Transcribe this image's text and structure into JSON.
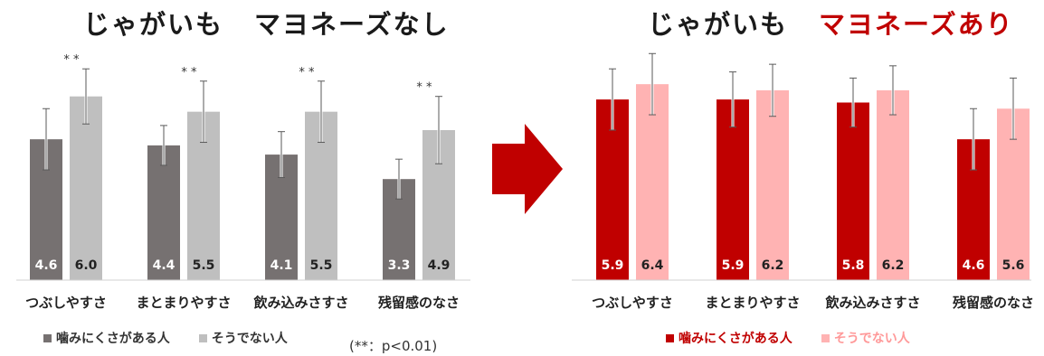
{
  "titles": {
    "left_part1": "じゃがいも",
    "left_part2": "マヨネーズなし",
    "right_part1": "じゃがいも",
    "right_part2": "マヨネーズあり"
  },
  "legend": {
    "series1": "噛みにくさがある人",
    "series2": "そうでない人"
  },
  "note": "(**：p<0.01)",
  "colors": {
    "left_series1": "#767171",
    "left_series2": "#bfbfbf",
    "right_series1": "#c00000",
    "right_series2": "#ffb3b3",
    "arrow": "#c00000",
    "right_legend_text": "#c00000",
    "right_legend_text2": "#ff9999"
  },
  "chart_data": [
    {
      "type": "bar",
      "title": "じゃがいも マヨネーズなし",
      "categories": [
        "つぶしやすさ",
        "まとまりやすさ",
        "飲み込みさすさ",
        "残留感のなさ"
      ],
      "series": [
        {
          "name": "噛みにくさがある人",
          "values": [
            4.6,
            4.4,
            4.1,
            3.3
          ],
          "labels": [
            "4.6",
            "4.4",
            "4.1",
            "3.3"
          ],
          "error": [
            1.0,
            0.65,
            0.75,
            0.65
          ]
        },
        {
          "name": "そうでない人",
          "values": [
            6.0,
            5.5,
            5.5,
            4.9
          ],
          "labels": [
            "6.0",
            "5.5",
            "5.5",
            "4.9"
          ],
          "error": [
            0.9,
            1.0,
            1.0,
            1.1
          ]
        }
      ],
      "significance": [
        "* *",
        "* *",
        "* *",
        "* *"
      ],
      "ylim": [
        0,
        8.5
      ],
      "grid": false,
      "legend_position": "bottom-left"
    },
    {
      "type": "bar",
      "title": "じゃがいも マヨネーズあり",
      "categories": [
        "つぶしやすさ",
        "まとまりやすさ",
        "飲み込みさすさ",
        "残留感のなさ"
      ],
      "series": [
        {
          "name": "噛みにくさがある人",
          "values": [
            5.9,
            5.9,
            5.8,
            4.6
          ],
          "labels": [
            "5.9",
            "5.9",
            "5.8",
            "4.6"
          ],
          "error": [
            1.0,
            0.9,
            0.8,
            1.0
          ]
        },
        {
          "name": "そうでない人",
          "values": [
            6.4,
            6.2,
            6.2,
            5.6
          ],
          "labels": [
            "6.4",
            "6.2",
            "6.2",
            "5.6"
          ],
          "error": [
            1.0,
            0.85,
            0.8,
            1.0
          ]
        }
      ],
      "ylim": [
        0,
        8.5
      ],
      "grid": false,
      "legend_position": "bottom-center"
    }
  ]
}
